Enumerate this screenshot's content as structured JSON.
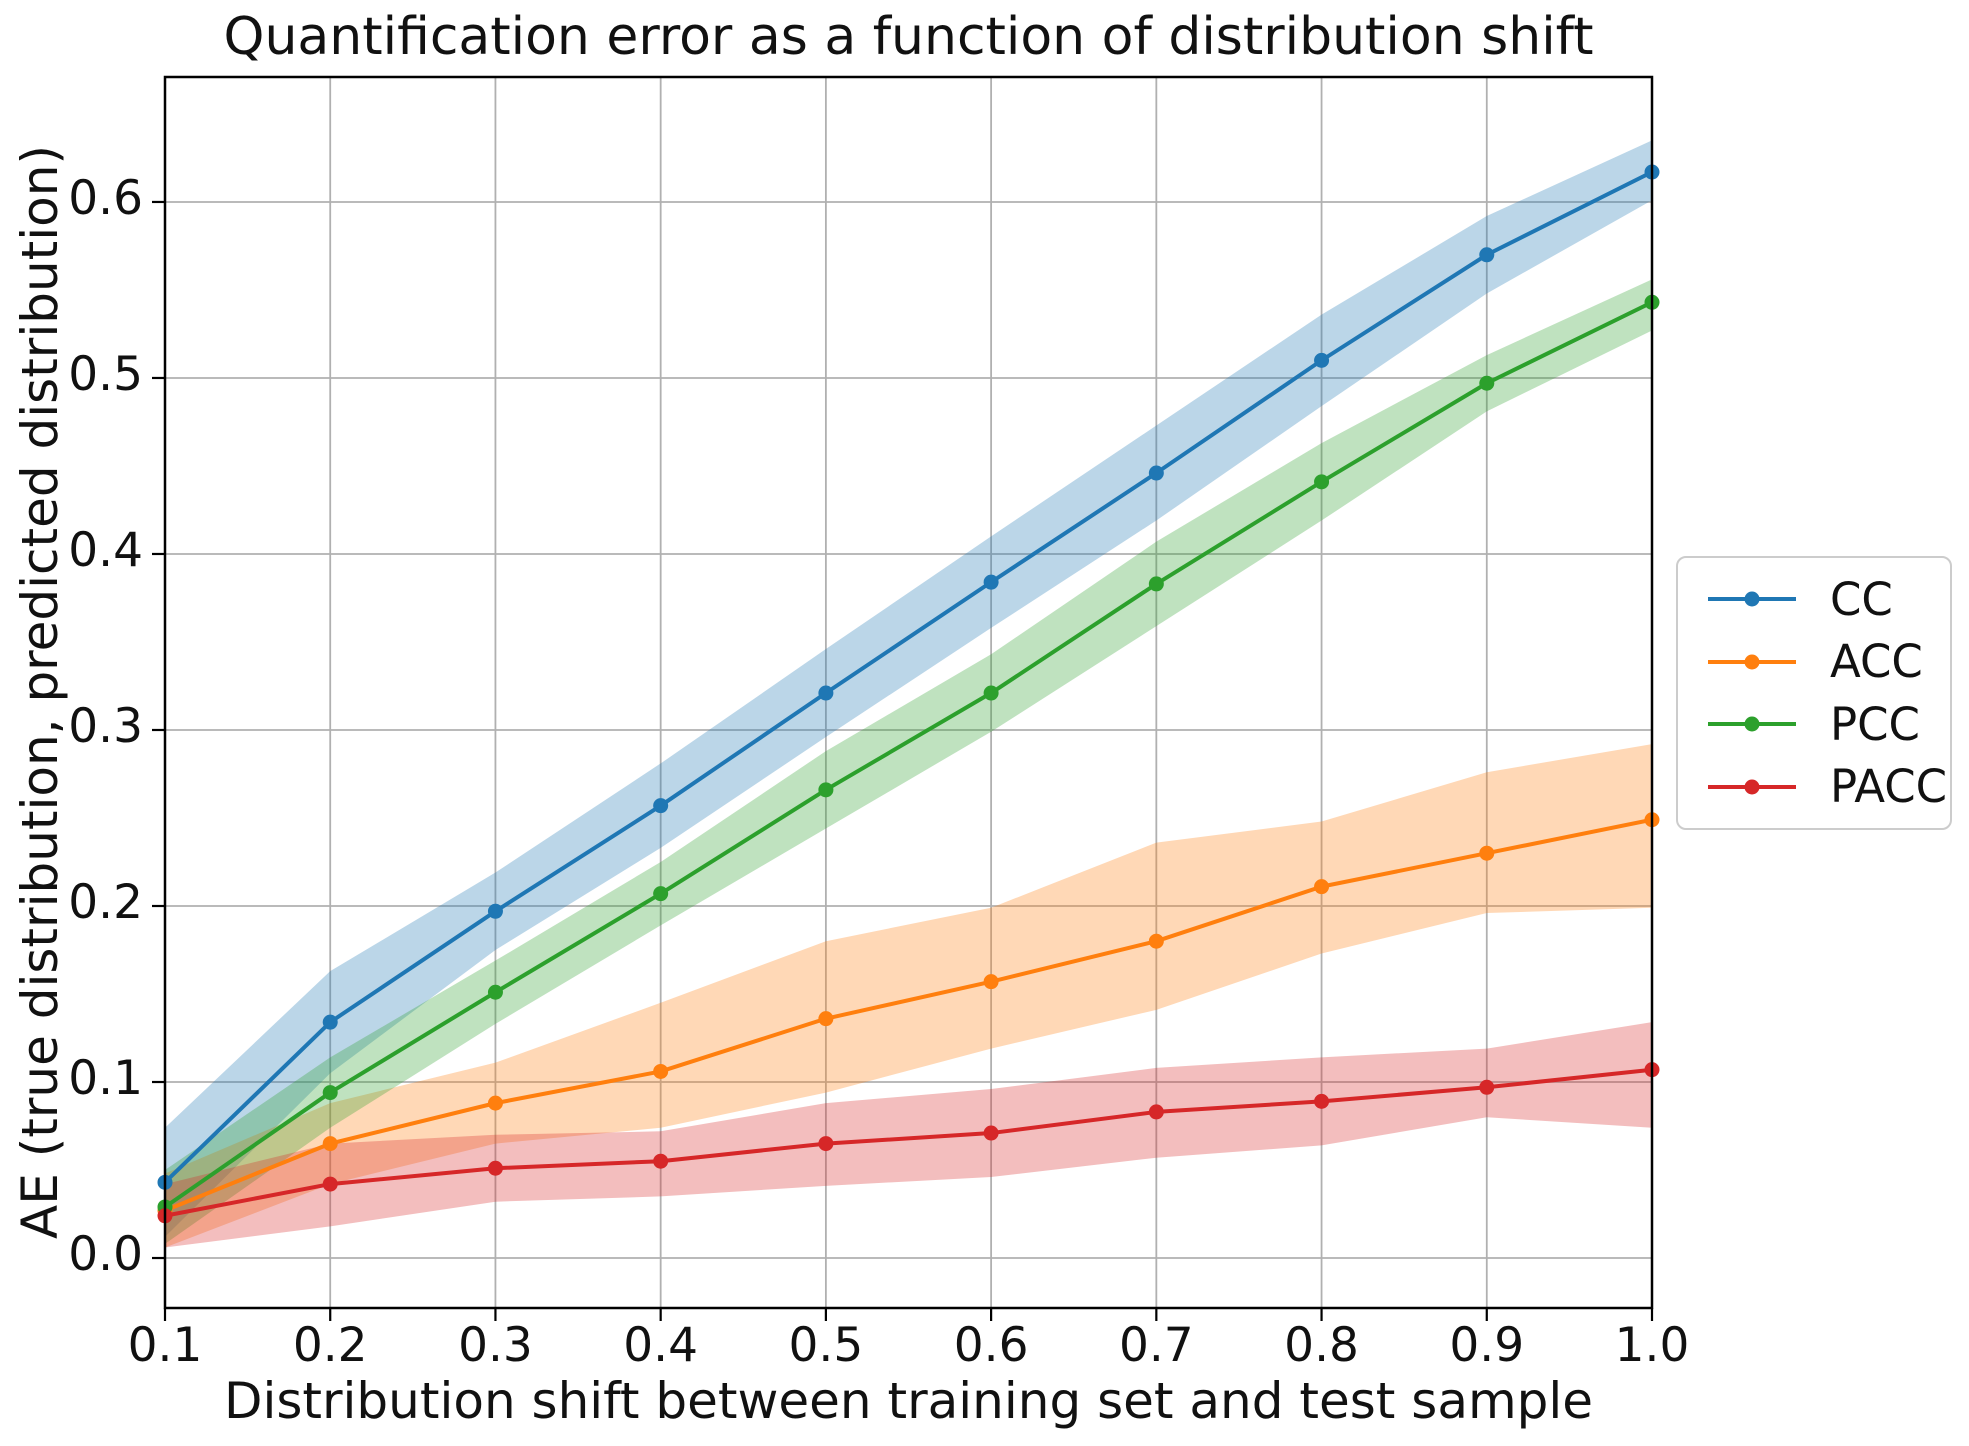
{
  "title": "Quantification error as a function of distribution shift",
  "chart_data": {
    "type": "line",
    "title": "Quantification error as a function of distribution shift",
    "xlabel": "Distribution shift between training set and test sample",
    "ylabel": "AE (true distribution, predicted distribution)",
    "x": [
      0.1,
      0.2,
      0.3,
      0.4,
      0.5,
      0.6,
      0.7,
      0.8,
      0.9,
      1.0
    ],
    "xlim": [
      0.1,
      1.0
    ],
    "ylim": [
      -0.0284,
      0.671
    ],
    "xtick_labels": [
      "0.1",
      "0.2",
      "0.3",
      "0.4",
      "0.5",
      "0.6",
      "0.7",
      "0.8",
      "0.9",
      "1.0"
    ],
    "xtick_values": [
      0.1,
      0.2,
      0.3,
      0.4,
      0.5,
      0.6,
      0.7,
      0.8,
      0.9,
      1.0
    ],
    "ytick_labels": [
      "0.0",
      "0.1",
      "0.2",
      "0.3",
      "0.4",
      "0.5",
      "0.6"
    ],
    "ytick_values": [
      0.0,
      0.1,
      0.2,
      0.3,
      0.4,
      0.5,
      0.6
    ],
    "grid": true,
    "grid_color": "#b0b0b0",
    "legend_position": "outside-center-right",
    "band_alpha": 0.3,
    "series": [
      {
        "name": "CC",
        "color": "#1f77b4",
        "values": [
          0.043,
          0.134,
          0.197,
          0.257,
          0.321,
          0.384,
          0.446,
          0.51,
          0.57,
          0.617
        ],
        "band_lo": [
          0.012,
          0.105,
          0.175,
          0.233,
          0.296,
          0.358,
          0.419,
          0.484,
          0.548,
          0.601
        ],
        "band_hi": [
          0.074,
          0.163,
          0.219,
          0.281,
          0.346,
          0.41,
          0.473,
          0.536,
          0.592,
          0.635
        ]
      },
      {
        "name": "ACC",
        "color": "#ff7f0e",
        "values": [
          0.027,
          0.065,
          0.088,
          0.106,
          0.136,
          0.157,
          0.18,
          0.211,
          0.23,
          0.249
        ],
        "band_lo": [
          0.006,
          0.042,
          0.065,
          0.074,
          0.094,
          0.119,
          0.141,
          0.173,
          0.196,
          0.199
        ],
        "band_hi": [
          0.048,
          0.088,
          0.111,
          0.145,
          0.18,
          0.199,
          0.236,
          0.248,
          0.276,
          0.292
        ]
      },
      {
        "name": "PCC",
        "color": "#2ca02c",
        "values": [
          0.029,
          0.094,
          0.151,
          0.207,
          0.266,
          0.321,
          0.383,
          0.441,
          0.497,
          0.543
        ],
        "band_lo": [
          0.008,
          0.074,
          0.133,
          0.189,
          0.244,
          0.299,
          0.359,
          0.419,
          0.481,
          0.527
        ],
        "band_hi": [
          0.05,
          0.114,
          0.169,
          0.225,
          0.288,
          0.343,
          0.407,
          0.463,
          0.513,
          0.556
        ]
      },
      {
        "name": "PACC",
        "color": "#d62728",
        "values": [
          0.024,
          0.042,
          0.051,
          0.055,
          0.065,
          0.071,
          0.083,
          0.089,
          0.097,
          0.107
        ],
        "band_lo": [
          0.006,
          0.018,
          0.032,
          0.035,
          0.041,
          0.046,
          0.057,
          0.064,
          0.08,
          0.074
        ],
        "band_hi": [
          0.042,
          0.065,
          0.07,
          0.072,
          0.088,
          0.096,
          0.108,
          0.114,
          0.119,
          0.134
        ]
      }
    ]
  },
  "style_colors": {
    "axes_edge": "#000000",
    "text": "#111111",
    "grid": "#b0b0b0",
    "legend_border": "#cccccc",
    "background": "#ffffff"
  }
}
